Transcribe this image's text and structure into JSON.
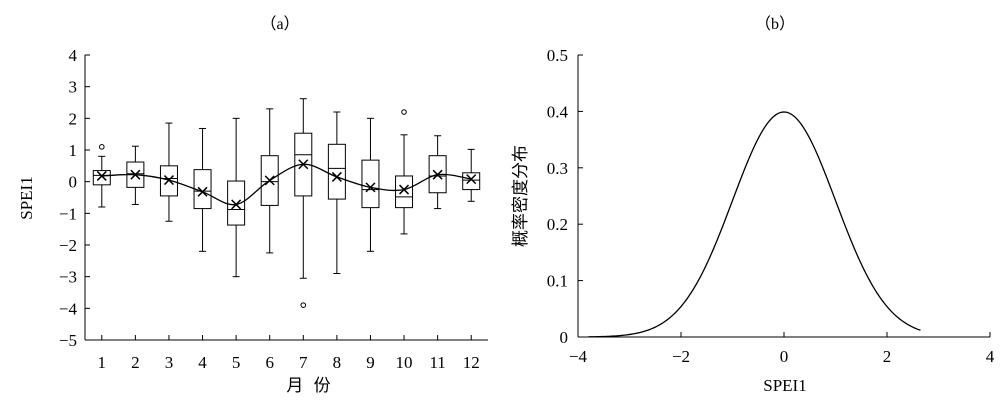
{
  "chart_data": [
    {
      "type": "box",
      "title": "（a）",
      "xlabel": "月 份",
      "ylabel": "SPEI1",
      "ylim": [
        -5,
        4
      ],
      "yticks": [
        "4",
        "3",
        "2",
        "1",
        "0",
        "−1",
        "−2",
        "−3",
        "−4",
        "−5"
      ],
      "ytick_values": [
        4,
        3,
        2,
        1,
        0,
        -1,
        -2,
        -3,
        -4,
        -5
      ],
      "categories": [
        "1",
        "2",
        "3",
        "4",
        "5",
        "6",
        "7",
        "8",
        "9",
        "10",
        "11",
        "12"
      ],
      "boxes": [
        {
          "min": -0.8,
          "q1": -0.1,
          "median": 0.2,
          "q3": 0.35,
          "max": 0.8,
          "mean": 0.18,
          "outliers": [
            1.1
          ]
        },
        {
          "min": -0.72,
          "q1": -0.18,
          "median": 0.25,
          "q3": 0.62,
          "max": 1.12,
          "mean": 0.22,
          "outliers": []
        },
        {
          "min": -1.25,
          "q1": -0.45,
          "median": 0.1,
          "q3": 0.5,
          "max": 1.85,
          "mean": 0.05,
          "outliers": []
        },
        {
          "min": -2.2,
          "q1": -0.85,
          "median": -0.3,
          "q3": 0.38,
          "max": 1.68,
          "mean": -0.32,
          "outliers": []
        },
        {
          "min": -3.0,
          "q1": -1.37,
          "median": -0.88,
          "q3": 0.02,
          "max": 2.0,
          "mean": -0.72,
          "outliers": []
        },
        {
          "min": -2.25,
          "q1": -0.75,
          "median": 0.0,
          "q3": 0.82,
          "max": 2.3,
          "mean": 0.04,
          "outliers": []
        },
        {
          "min": -3.05,
          "q1": -0.45,
          "median": 0.85,
          "q3": 1.53,
          "max": 2.62,
          "mean": 0.55,
          "outliers": [
            -3.9
          ]
        },
        {
          "min": -2.9,
          "q1": -0.55,
          "median": 0.42,
          "q3": 1.18,
          "max": 2.2,
          "mean": 0.15,
          "outliers": []
        },
        {
          "min": -2.2,
          "q1": -0.82,
          "median": -0.25,
          "q3": 0.68,
          "max": 2.0,
          "mean": -0.18,
          "outliers": []
        },
        {
          "min": -1.65,
          "q1": -0.82,
          "median": -0.48,
          "q3": 0.18,
          "max": 1.48,
          "mean": -0.25,
          "outliers": [
            2.2
          ]
        },
        {
          "min": -0.85,
          "q1": -0.35,
          "median": 0.18,
          "q3": 0.82,
          "max": 1.45,
          "mean": 0.22,
          "outliers": []
        },
        {
          "min": -0.62,
          "q1": -0.25,
          "median": 0.05,
          "q3": 0.28,
          "max": 1.02,
          "mean": 0.08,
          "outliers": []
        }
      ],
      "mean_line": true,
      "grid": false
    },
    {
      "type": "line",
      "title": "（b）",
      "xlabel": "SPEI1",
      "ylabel": "概率密度分布",
      "xlim": [
        -4,
        4
      ],
      "ylim": [
        0,
        0.5
      ],
      "xticks": [
        "−4",
        "−2",
        "0",
        "2",
        "4"
      ],
      "xtick_values": [
        -4,
        -2,
        0,
        2,
        4
      ],
      "yticks": [
        "0.5",
        "0.4",
        "0.3",
        "0.2",
        "0.1",
        "0"
      ],
      "ytick_values": [
        0.5,
        0.4,
        0.3,
        0.2,
        0.1,
        0
      ],
      "series": [
        {
          "x_range": [
            -3.8,
            2.65
          ],
          "distribution": "standard normal pdf"
        }
      ],
      "grid": false
    }
  ]
}
